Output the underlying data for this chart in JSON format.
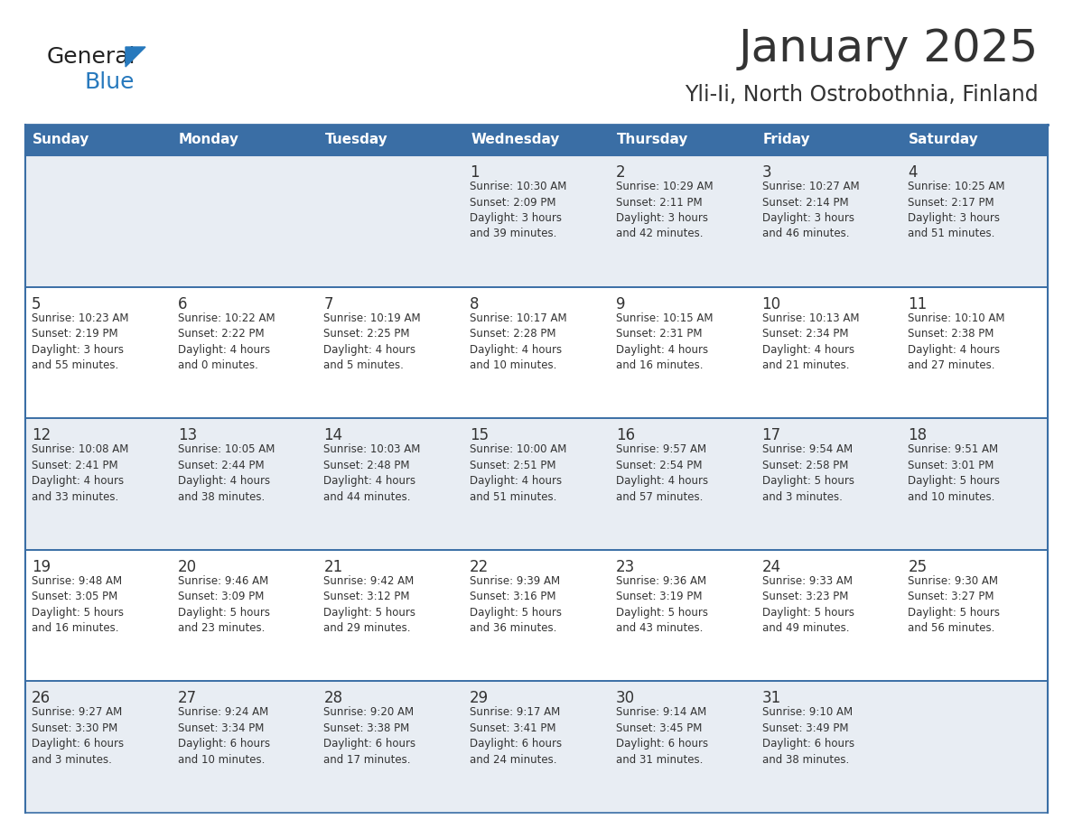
{
  "title": "January 2025",
  "subtitle": "Yli-Ii, North Ostrobothnia, Finland",
  "days_of_week": [
    "Sunday",
    "Monday",
    "Tuesday",
    "Wednesday",
    "Thursday",
    "Friday",
    "Saturday"
  ],
  "header_bg": "#3a6ea5",
  "header_text": "#ffffff",
  "row_bg_light": "#e8edf3",
  "row_bg_white": "#ffffff",
  "cell_text": "#333333",
  "border_color": "#3a6ea5",
  "title_color": "#333333",
  "subtitle_color": "#333333",
  "logo_general_color": "#222222",
  "logo_blue_color": "#2779bd",
  "calendar": [
    [
      {
        "day": "",
        "info": ""
      },
      {
        "day": "",
        "info": ""
      },
      {
        "day": "",
        "info": ""
      },
      {
        "day": "1",
        "info": "Sunrise: 10:30 AM\nSunset: 2:09 PM\nDaylight: 3 hours\nand 39 minutes."
      },
      {
        "day": "2",
        "info": "Sunrise: 10:29 AM\nSunset: 2:11 PM\nDaylight: 3 hours\nand 42 minutes."
      },
      {
        "day": "3",
        "info": "Sunrise: 10:27 AM\nSunset: 2:14 PM\nDaylight: 3 hours\nand 46 minutes."
      },
      {
        "day": "4",
        "info": "Sunrise: 10:25 AM\nSunset: 2:17 PM\nDaylight: 3 hours\nand 51 minutes."
      }
    ],
    [
      {
        "day": "5",
        "info": "Sunrise: 10:23 AM\nSunset: 2:19 PM\nDaylight: 3 hours\nand 55 minutes."
      },
      {
        "day": "6",
        "info": "Sunrise: 10:22 AM\nSunset: 2:22 PM\nDaylight: 4 hours\nand 0 minutes."
      },
      {
        "day": "7",
        "info": "Sunrise: 10:19 AM\nSunset: 2:25 PM\nDaylight: 4 hours\nand 5 minutes."
      },
      {
        "day": "8",
        "info": "Sunrise: 10:17 AM\nSunset: 2:28 PM\nDaylight: 4 hours\nand 10 minutes."
      },
      {
        "day": "9",
        "info": "Sunrise: 10:15 AM\nSunset: 2:31 PM\nDaylight: 4 hours\nand 16 minutes."
      },
      {
        "day": "10",
        "info": "Sunrise: 10:13 AM\nSunset: 2:34 PM\nDaylight: 4 hours\nand 21 minutes."
      },
      {
        "day": "11",
        "info": "Sunrise: 10:10 AM\nSunset: 2:38 PM\nDaylight: 4 hours\nand 27 minutes."
      }
    ],
    [
      {
        "day": "12",
        "info": "Sunrise: 10:08 AM\nSunset: 2:41 PM\nDaylight: 4 hours\nand 33 minutes."
      },
      {
        "day": "13",
        "info": "Sunrise: 10:05 AM\nSunset: 2:44 PM\nDaylight: 4 hours\nand 38 minutes."
      },
      {
        "day": "14",
        "info": "Sunrise: 10:03 AM\nSunset: 2:48 PM\nDaylight: 4 hours\nand 44 minutes."
      },
      {
        "day": "15",
        "info": "Sunrise: 10:00 AM\nSunset: 2:51 PM\nDaylight: 4 hours\nand 51 minutes."
      },
      {
        "day": "16",
        "info": "Sunrise: 9:57 AM\nSunset: 2:54 PM\nDaylight: 4 hours\nand 57 minutes."
      },
      {
        "day": "17",
        "info": "Sunrise: 9:54 AM\nSunset: 2:58 PM\nDaylight: 5 hours\nand 3 minutes."
      },
      {
        "day": "18",
        "info": "Sunrise: 9:51 AM\nSunset: 3:01 PM\nDaylight: 5 hours\nand 10 minutes."
      }
    ],
    [
      {
        "day": "19",
        "info": "Sunrise: 9:48 AM\nSunset: 3:05 PM\nDaylight: 5 hours\nand 16 minutes."
      },
      {
        "day": "20",
        "info": "Sunrise: 9:46 AM\nSunset: 3:09 PM\nDaylight: 5 hours\nand 23 minutes."
      },
      {
        "day": "21",
        "info": "Sunrise: 9:42 AM\nSunset: 3:12 PM\nDaylight: 5 hours\nand 29 minutes."
      },
      {
        "day": "22",
        "info": "Sunrise: 9:39 AM\nSunset: 3:16 PM\nDaylight: 5 hours\nand 36 minutes."
      },
      {
        "day": "23",
        "info": "Sunrise: 9:36 AM\nSunset: 3:19 PM\nDaylight: 5 hours\nand 43 minutes."
      },
      {
        "day": "24",
        "info": "Sunrise: 9:33 AM\nSunset: 3:23 PM\nDaylight: 5 hours\nand 49 minutes."
      },
      {
        "day": "25",
        "info": "Sunrise: 9:30 AM\nSunset: 3:27 PM\nDaylight: 5 hours\nand 56 minutes."
      }
    ],
    [
      {
        "day": "26",
        "info": "Sunrise: 9:27 AM\nSunset: 3:30 PM\nDaylight: 6 hours\nand 3 minutes."
      },
      {
        "day": "27",
        "info": "Sunrise: 9:24 AM\nSunset: 3:34 PM\nDaylight: 6 hours\nand 10 minutes."
      },
      {
        "day": "28",
        "info": "Sunrise: 9:20 AM\nSunset: 3:38 PM\nDaylight: 6 hours\nand 17 minutes."
      },
      {
        "day": "29",
        "info": "Sunrise: 9:17 AM\nSunset: 3:41 PM\nDaylight: 6 hours\nand 24 minutes."
      },
      {
        "day": "30",
        "info": "Sunrise: 9:14 AM\nSunset: 3:45 PM\nDaylight: 6 hours\nand 31 minutes."
      },
      {
        "day": "31",
        "info": "Sunrise: 9:10 AM\nSunset: 3:49 PM\nDaylight: 6 hours\nand 38 minutes."
      },
      {
        "day": "",
        "info": ""
      }
    ]
  ]
}
